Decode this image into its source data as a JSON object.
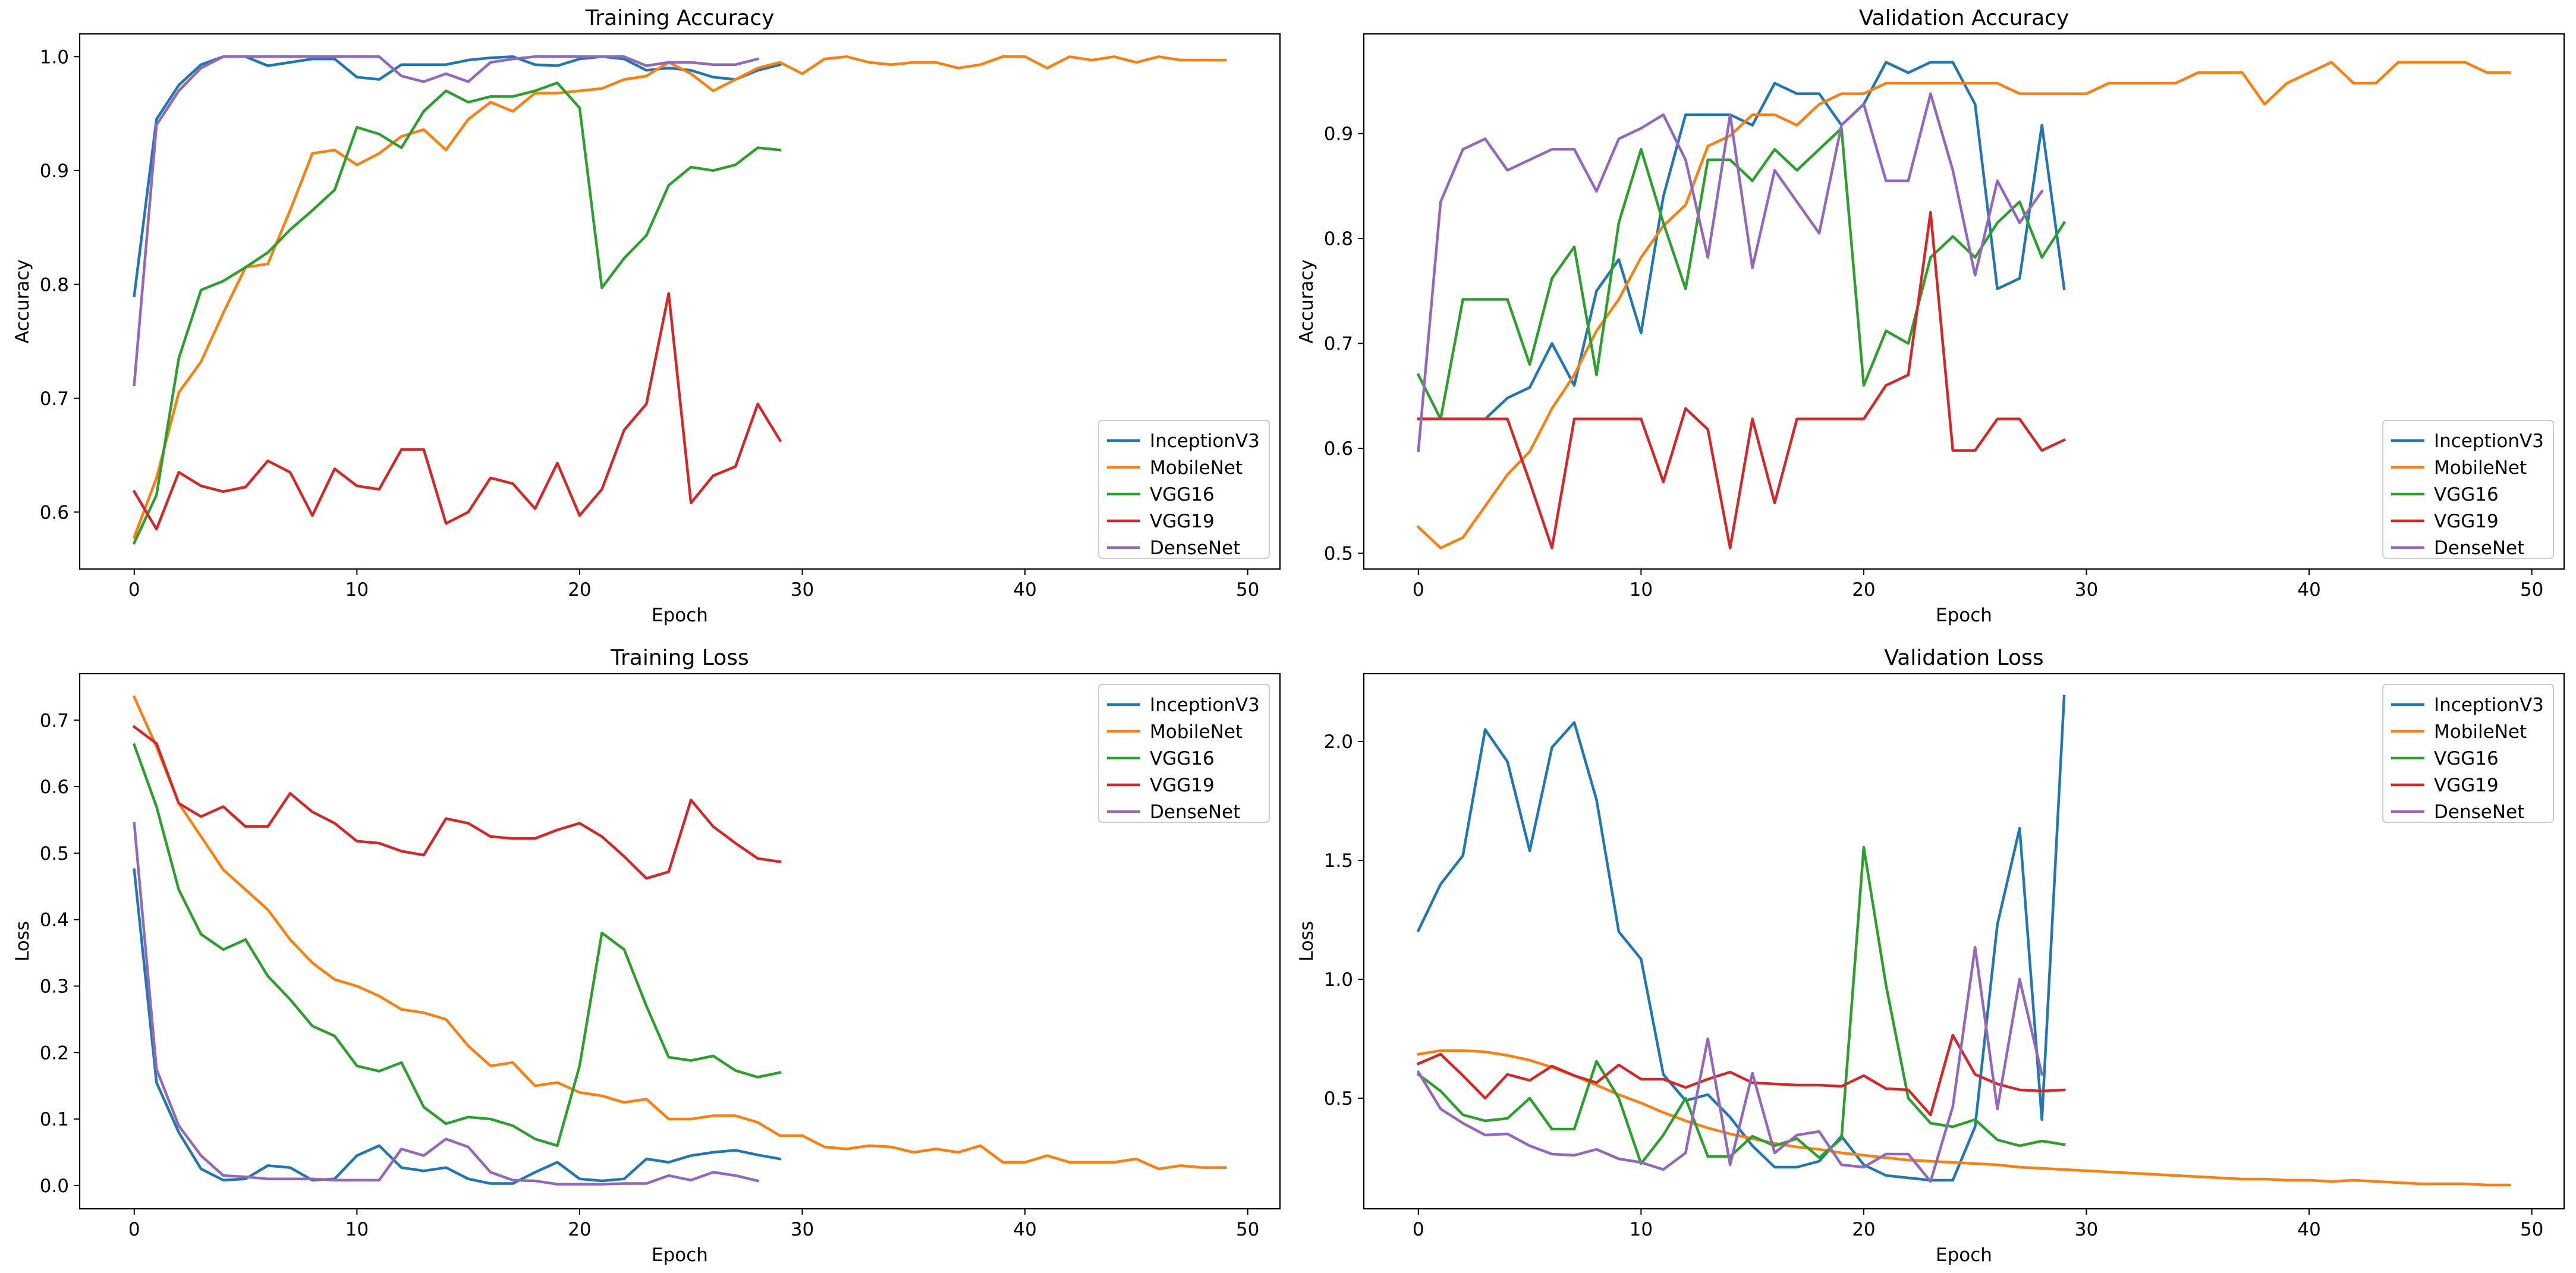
{
  "figure": {
    "layout": "2x2 grid"
  },
  "colors": {
    "InceptionV3": "#1f77b4",
    "MobileNet": "#ff7f0e",
    "VGG16": "#2ca02c",
    "VGG19": "#d62728",
    "DenseNet": "#9467bd"
  },
  "chart_data": [
    {
      "id": "training-accuracy",
      "type": "line",
      "title": "Training Accuracy",
      "xlabel": "Epoch",
      "ylabel": "Accuracy",
      "xlim": [
        -2.45,
        51.45
      ],
      "ylim": [
        0.55,
        1.02
      ],
      "xticks": [
        0,
        10,
        20,
        30,
        40,
        50
      ],
      "yticks": [
        0.6,
        0.7,
        0.8,
        0.9,
        1.0
      ],
      "ytick_decimals": 1,
      "legend": "lower-right",
      "series": [
        {
          "name": "InceptionV3",
          "values": [
            0.79,
            0.945,
            0.975,
            0.993,
            1.0,
            1.0,
            0.992,
            0.995,
            0.998,
            0.998,
            0.982,
            0.98,
            0.993,
            0.993,
            0.993,
            0.997,
            0.999,
            1.0,
            0.993,
            0.992,
            0.998,
            1.0,
            0.998,
            0.988,
            0.99,
            0.988,
            0.982,
            0.98,
            0.988,
            0.993
          ]
        },
        {
          "name": "MobileNet",
          "values": [
            0.578,
            0.63,
            0.705,
            0.732,
            0.775,
            0.815,
            0.818,
            0.865,
            0.915,
            0.918,
            0.905,
            0.915,
            0.93,
            0.936,
            0.918,
            0.945,
            0.96,
            0.952,
            0.968,
            0.968,
            0.97,
            0.972,
            0.98,
            0.983,
            0.995,
            0.985,
            0.97,
            0.98,
            0.99,
            0.995,
            0.985,
            0.998,
            1.0,
            0.995,
            0.993,
            0.995,
            0.995,
            0.99,
            0.993,
            1.0,
            1.0,
            0.99,
            1.0,
            0.997,
            1.0,
            0.995,
            1.0,
            0.997,
            0.997,
            0.997
          ]
        },
        {
          "name": "VGG16",
          "values": [
            0.573,
            0.615,
            0.735,
            0.795,
            0.803,
            0.815,
            0.828,
            0.848,
            0.865,
            0.883,
            0.938,
            0.932,
            0.92,
            0.952,
            0.97,
            0.96,
            0.965,
            0.965,
            0.97,
            0.977,
            0.955,
            0.797,
            0.823,
            0.843,
            0.887,
            0.903,
            0.9,
            0.905,
            0.92,
            0.918
          ]
        },
        {
          "name": "VGG19",
          "values": [
            0.618,
            0.585,
            0.635,
            0.623,
            0.618,
            0.622,
            0.645,
            0.635,
            0.597,
            0.638,
            0.623,
            0.62,
            0.655,
            0.655,
            0.59,
            0.6,
            0.63,
            0.625,
            0.603,
            0.643,
            0.597,
            0.62,
            0.672,
            0.695,
            0.792,
            0.608,
            0.632,
            0.64,
            0.695,
            0.663
          ]
        },
        {
          "name": "DenseNet",
          "values": [
            0.712,
            0.94,
            0.97,
            0.99,
            1.0,
            1.0,
            1.0,
            1.0,
            1.0,
            1.0,
            1.0,
            1.0,
            0.983,
            0.978,
            0.985,
            0.978,
            0.995,
            0.998,
            1.0,
            1.0,
            1.0,
            1.0,
            1.0,
            0.992,
            0.995,
            0.995,
            0.993,
            0.993,
            0.998
          ]
        }
      ]
    },
    {
      "id": "validation-accuracy",
      "type": "line",
      "title": "Validation Accuracy",
      "xlabel": "Epoch",
      "ylabel": "Accuracy",
      "xlim": [
        -2.45,
        51.45
      ],
      "ylim": [
        0.485,
        0.995
      ],
      "xticks": [
        0,
        10,
        20,
        30,
        40,
        50
      ],
      "yticks": [
        0.5,
        0.6,
        0.7,
        0.8,
        0.9
      ],
      "ytick_decimals": 1,
      "legend": "lower-right",
      "series": [
        {
          "name": "InceptionV3",
          "values": [
            0.628,
            0.628,
            0.628,
            0.628,
            0.648,
            0.658,
            0.7,
            0.66,
            0.75,
            0.78,
            0.71,
            0.84,
            0.918,
            0.918,
            0.918,
            0.908,
            0.948,
            0.938,
            0.938,
            0.908,
            0.928,
            0.968,
            0.958,
            0.968,
            0.968,
            0.928,
            0.752,
            0.762,
            0.908,
            0.752
          ]
        },
        {
          "name": "MobileNet",
          "values": [
            0.525,
            0.505,
            0.515,
            0.545,
            0.575,
            0.597,
            0.638,
            0.67,
            0.712,
            0.742,
            0.782,
            0.812,
            0.832,
            0.888,
            0.898,
            0.918,
            0.918,
            0.908,
            0.928,
            0.938,
            0.938,
            0.948,
            0.948,
            0.948,
            0.948,
            0.948,
            0.948,
            0.938,
            0.938,
            0.938,
            0.938,
            0.948,
            0.948,
            0.948,
            0.948,
            0.958,
            0.958,
            0.958,
            0.928,
            0.948,
            0.958,
            0.968,
            0.948,
            0.948,
            0.968,
            0.968,
            0.968,
            0.968,
            0.958,
            0.958
          ]
        },
        {
          "name": "VGG16",
          "values": [
            0.67,
            0.628,
            0.742,
            0.742,
            0.742,
            0.68,
            0.762,
            0.792,
            0.67,
            0.815,
            0.885,
            0.815,
            0.752,
            0.875,
            0.875,
            0.855,
            0.885,
            0.865,
            0.885,
            0.905,
            0.66,
            0.712,
            0.7,
            0.782,
            0.802,
            0.782,
            0.815,
            0.835,
            0.782,
            0.815
          ]
        },
        {
          "name": "VGG19",
          "values": [
            0.628,
            0.628,
            0.628,
            0.628,
            0.628,
            0.568,
            0.505,
            0.628,
            0.628,
            0.628,
            0.628,
            0.568,
            0.638,
            0.618,
            0.505,
            0.628,
            0.548,
            0.628,
            0.628,
            0.628,
            0.628,
            0.66,
            0.67,
            0.825,
            0.598,
            0.598,
            0.628,
            0.628,
            0.598,
            0.608
          ]
        },
        {
          "name": "DenseNet",
          "values": [
            0.598,
            0.835,
            0.885,
            0.895,
            0.865,
            0.875,
            0.885,
            0.885,
            0.845,
            0.895,
            0.905,
            0.918,
            0.875,
            0.782,
            0.918,
            0.772,
            0.865,
            0.835,
            0.805,
            0.908,
            0.928,
            0.855,
            0.855,
            0.938,
            0.865,
            0.765,
            0.855,
            0.815,
            0.845
          ]
        }
      ]
    },
    {
      "id": "training-loss",
      "type": "line",
      "title": "Training Loss",
      "xlabel": "Epoch",
      "ylabel": "Loss",
      "xlim": [
        -2.45,
        51.45
      ],
      "ylim": [
        -0.035,
        0.77
      ],
      "xticks": [
        0,
        10,
        20,
        30,
        40,
        50
      ],
      "yticks": [
        0.0,
        0.1,
        0.2,
        0.3,
        0.4,
        0.5,
        0.6,
        0.7
      ],
      "ytick_decimals": 1,
      "legend": "upper-right",
      "series": [
        {
          "name": "InceptionV3",
          "values": [
            0.475,
            0.155,
            0.08,
            0.025,
            0.008,
            0.01,
            0.03,
            0.027,
            0.008,
            0.01,
            0.045,
            0.06,
            0.027,
            0.022,
            0.027,
            0.01,
            0.003,
            0.003,
            0.02,
            0.035,
            0.01,
            0.007,
            0.01,
            0.04,
            0.035,
            0.045,
            0.05,
            0.053,
            0.046,
            0.04
          ]
        },
        {
          "name": "MobileNet",
          "values": [
            0.735,
            0.66,
            0.575,
            0.525,
            0.475,
            0.445,
            0.415,
            0.37,
            0.335,
            0.31,
            0.3,
            0.285,
            0.265,
            0.26,
            0.25,
            0.21,
            0.18,
            0.185,
            0.15,
            0.155,
            0.14,
            0.135,
            0.125,
            0.13,
            0.1,
            0.1,
            0.105,
            0.105,
            0.095,
            0.075,
            0.075,
            0.058,
            0.055,
            0.06,
            0.058,
            0.05,
            0.055,
            0.05,
            0.06,
            0.035,
            0.035,
            0.045,
            0.035,
            0.035,
            0.035,
            0.04,
            0.025,
            0.03,
            0.027,
            0.027
          ]
        },
        {
          "name": "VGG16",
          "values": [
            0.663,
            0.57,
            0.445,
            0.378,
            0.355,
            0.37,
            0.315,
            0.28,
            0.24,
            0.225,
            0.18,
            0.172,
            0.185,
            0.118,
            0.093,
            0.103,
            0.1,
            0.09,
            0.07,
            0.06,
            0.18,
            0.38,
            0.355,
            0.27,
            0.193,
            0.188,
            0.195,
            0.173,
            0.163,
            0.17
          ]
        },
        {
          "name": "VGG19",
          "values": [
            0.69,
            0.665,
            0.575,
            0.555,
            0.57,
            0.54,
            0.54,
            0.59,
            0.562,
            0.545,
            0.518,
            0.515,
            0.503,
            0.497,
            0.552,
            0.545,
            0.525,
            0.522,
            0.522,
            0.535,
            0.545,
            0.525,
            0.495,
            0.462,
            0.472,
            0.58,
            0.54,
            0.515,
            0.492,
            0.487
          ]
        },
        {
          "name": "DenseNet",
          "values": [
            0.545,
            0.175,
            0.09,
            0.045,
            0.015,
            0.013,
            0.01,
            0.01,
            0.01,
            0.008,
            0.008,
            0.008,
            0.055,
            0.045,
            0.07,
            0.058,
            0.02,
            0.008,
            0.007,
            0.002,
            0.002,
            0.002,
            0.003,
            0.003,
            0.015,
            0.008,
            0.02,
            0.015,
            0.007
          ]
        }
      ]
    },
    {
      "id": "validation-loss",
      "type": "line",
      "title": "Validation Loss",
      "xlabel": "Epoch",
      "ylabel": "Loss",
      "xlim": [
        -2.45,
        51.45
      ],
      "ylim": [
        0.035,
        2.285
      ],
      "xticks": [
        0,
        10,
        20,
        30,
        40,
        50
      ],
      "yticks": [
        0.5,
        1.0,
        1.5,
        2.0
      ],
      "ytick_decimals": 1,
      "legend": "upper-right",
      "series": [
        {
          "name": "InceptionV3",
          "values": [
            1.205,
            1.4,
            1.52,
            2.05,
            1.915,
            1.54,
            1.975,
            2.08,
            1.755,
            1.2,
            1.085,
            0.6,
            0.49,
            0.515,
            0.42,
            0.3,
            0.21,
            0.21,
            0.235,
            0.34,
            0.22,
            0.175,
            0.165,
            0.155,
            0.155,
            0.38,
            1.23,
            1.635,
            0.41,
            2.19
          ]
        },
        {
          "name": "MobileNet",
          "values": [
            0.685,
            0.7,
            0.7,
            0.695,
            0.68,
            0.66,
            0.63,
            0.595,
            0.555,
            0.515,
            0.48,
            0.44,
            0.405,
            0.375,
            0.35,
            0.33,
            0.31,
            0.295,
            0.285,
            0.27,
            0.26,
            0.25,
            0.24,
            0.235,
            0.23,
            0.225,
            0.22,
            0.21,
            0.205,
            0.2,
            0.195,
            0.19,
            0.185,
            0.18,
            0.175,
            0.17,
            0.165,
            0.16,
            0.16,
            0.155,
            0.155,
            0.15,
            0.155,
            0.15,
            0.145,
            0.14,
            0.14,
            0.14,
            0.135,
            0.135
          ]
        },
        {
          "name": "VGG16",
          "values": [
            0.6,
            0.53,
            0.43,
            0.405,
            0.415,
            0.5,
            0.37,
            0.37,
            0.655,
            0.5,
            0.225,
            0.345,
            0.5,
            0.255,
            0.255,
            0.34,
            0.3,
            0.33,
            0.25,
            0.33,
            1.555,
            0.975,
            0.5,
            0.395,
            0.38,
            0.41,
            0.325,
            0.3,
            0.32,
            0.305
          ]
        },
        {
          "name": "VGG19",
          "values": [
            0.645,
            0.685,
            0.595,
            0.5,
            0.6,
            0.575,
            0.635,
            0.595,
            0.565,
            0.64,
            0.58,
            0.58,
            0.545,
            0.58,
            0.61,
            0.565,
            0.56,
            0.555,
            0.555,
            0.55,
            0.595,
            0.54,
            0.535,
            0.43,
            0.765,
            0.6,
            0.56,
            0.535,
            0.53,
            0.535
          ]
        },
        {
          "name": "DenseNet",
          "values": [
            0.61,
            0.455,
            0.395,
            0.345,
            0.35,
            0.3,
            0.265,
            0.26,
            0.285,
            0.245,
            0.23,
            0.2,
            0.27,
            0.75,
            0.22,
            0.605,
            0.27,
            0.345,
            0.36,
            0.22,
            0.21,
            0.265,
            0.265,
            0.15,
            0.465,
            1.135,
            0.455,
            1.0,
            0.6
          ]
        }
      ]
    }
  ]
}
